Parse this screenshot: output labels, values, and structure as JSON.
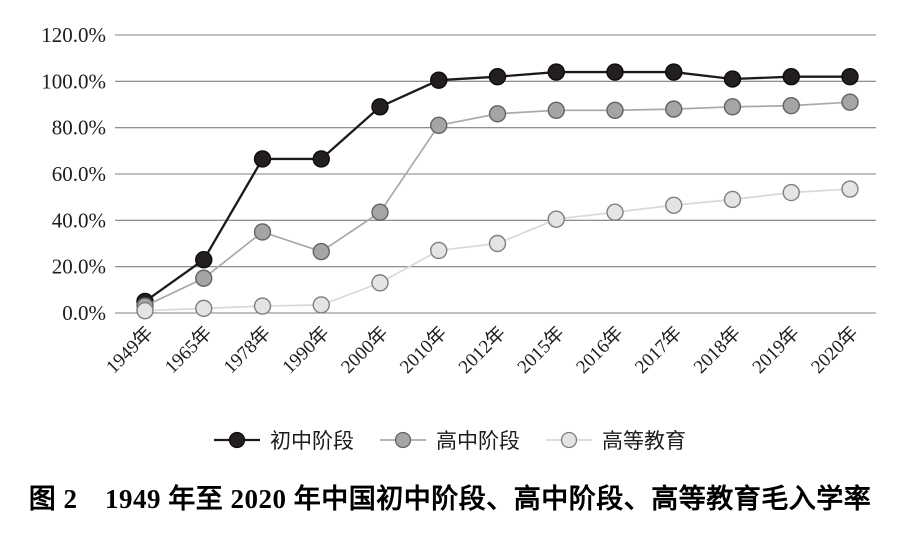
{
  "figure": {
    "caption": "图 2　1949 年至 2020 年中国初中阶段、高中阶段、高等教育毛入学率"
  },
  "colors": {
    "gridline": "#7f7f7f",
    "text": "#1c1c1c",
    "background": "#ffffff"
  },
  "chart_data": {
    "type": "line",
    "title": "",
    "xlabel": "",
    "ylabel": "",
    "ylim": [
      0,
      120
    ],
    "grid": "horizontal",
    "legend_position": "bottom",
    "yticks": [
      "0.0%",
      "20.0%",
      "40.0%",
      "60.0%",
      "80.0%",
      "100.0%",
      "120.0%"
    ],
    "categories": [
      "1949年",
      "1965年",
      "1978年",
      "1990年",
      "2000年",
      "2010年",
      "2012年",
      "2015年",
      "2016年",
      "2017年",
      "2018年",
      "2019年",
      "2020年"
    ],
    "series": [
      {
        "id": "junior-secondary",
        "name": "初中阶段",
        "line_color": "#1d1b1a",
        "marker_fill": "#231f1e",
        "marker_stroke": "#0d0b0a",
        "values": [
          5,
          23,
          66.5,
          66.5,
          89,
          100.5,
          102,
          104,
          104,
          104,
          101,
          102,
          102
        ]
      },
      {
        "id": "senior-secondary",
        "name": "高中阶段",
        "line_color": "#a9a9a9",
        "marker_fill": "#a5a5a5",
        "marker_stroke": "#636363",
        "values": [
          3,
          15,
          35,
          26.5,
          43.5,
          81,
          86,
          87.5,
          87.5,
          88,
          89,
          89.5,
          91
        ]
      },
      {
        "id": "higher-education",
        "name": "高等教育",
        "line_color": "#d9d9d9",
        "marker_fill": "#e4e4e4",
        "marker_stroke": "#7f7f7f",
        "values": [
          1,
          2,
          3,
          3.5,
          13,
          27,
          30,
          40.5,
          43.5,
          46.5,
          49,
          52,
          53.5
        ]
      }
    ]
  }
}
